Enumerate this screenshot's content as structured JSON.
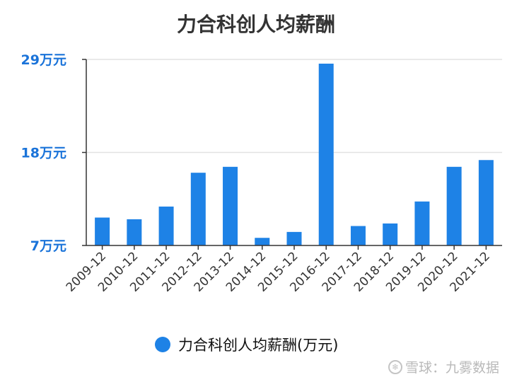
{
  "chart_data": {
    "type": "bar",
    "title": "力合科创人均薪酬",
    "categories": [
      "2009-12",
      "2010-12",
      "2011-12",
      "2012-12",
      "2013-12",
      "2014-12",
      "2015-12",
      "2016-12",
      "2017-12",
      "2018-12",
      "2019-12",
      "2020-12",
      "2021-12"
    ],
    "series": [
      {
        "name": "力合科创人均薪酬(万元)",
        "values": [
          10.3,
          10.1,
          11.6,
          15.6,
          16.3,
          7.9,
          8.6,
          28.5,
          9.3,
          9.6,
          12.2,
          16.3,
          17.1
        ]
      }
    ],
    "yticks": [
      7,
      18,
      29
    ],
    "ytick_labels": [
      "7万元",
      "18万元",
      "29万元"
    ],
    "ylim": [
      7,
      29
    ],
    "grid": true,
    "legend_position": "bottom",
    "colors": {
      "bar": "#1e82e6",
      "ytick": "#1a73d9",
      "grid": "#e2e2e2",
      "axis": "#333333"
    }
  },
  "watermark": {
    "text": "雪球：九雾数据",
    "icon": "snowball-logo-icon"
  }
}
